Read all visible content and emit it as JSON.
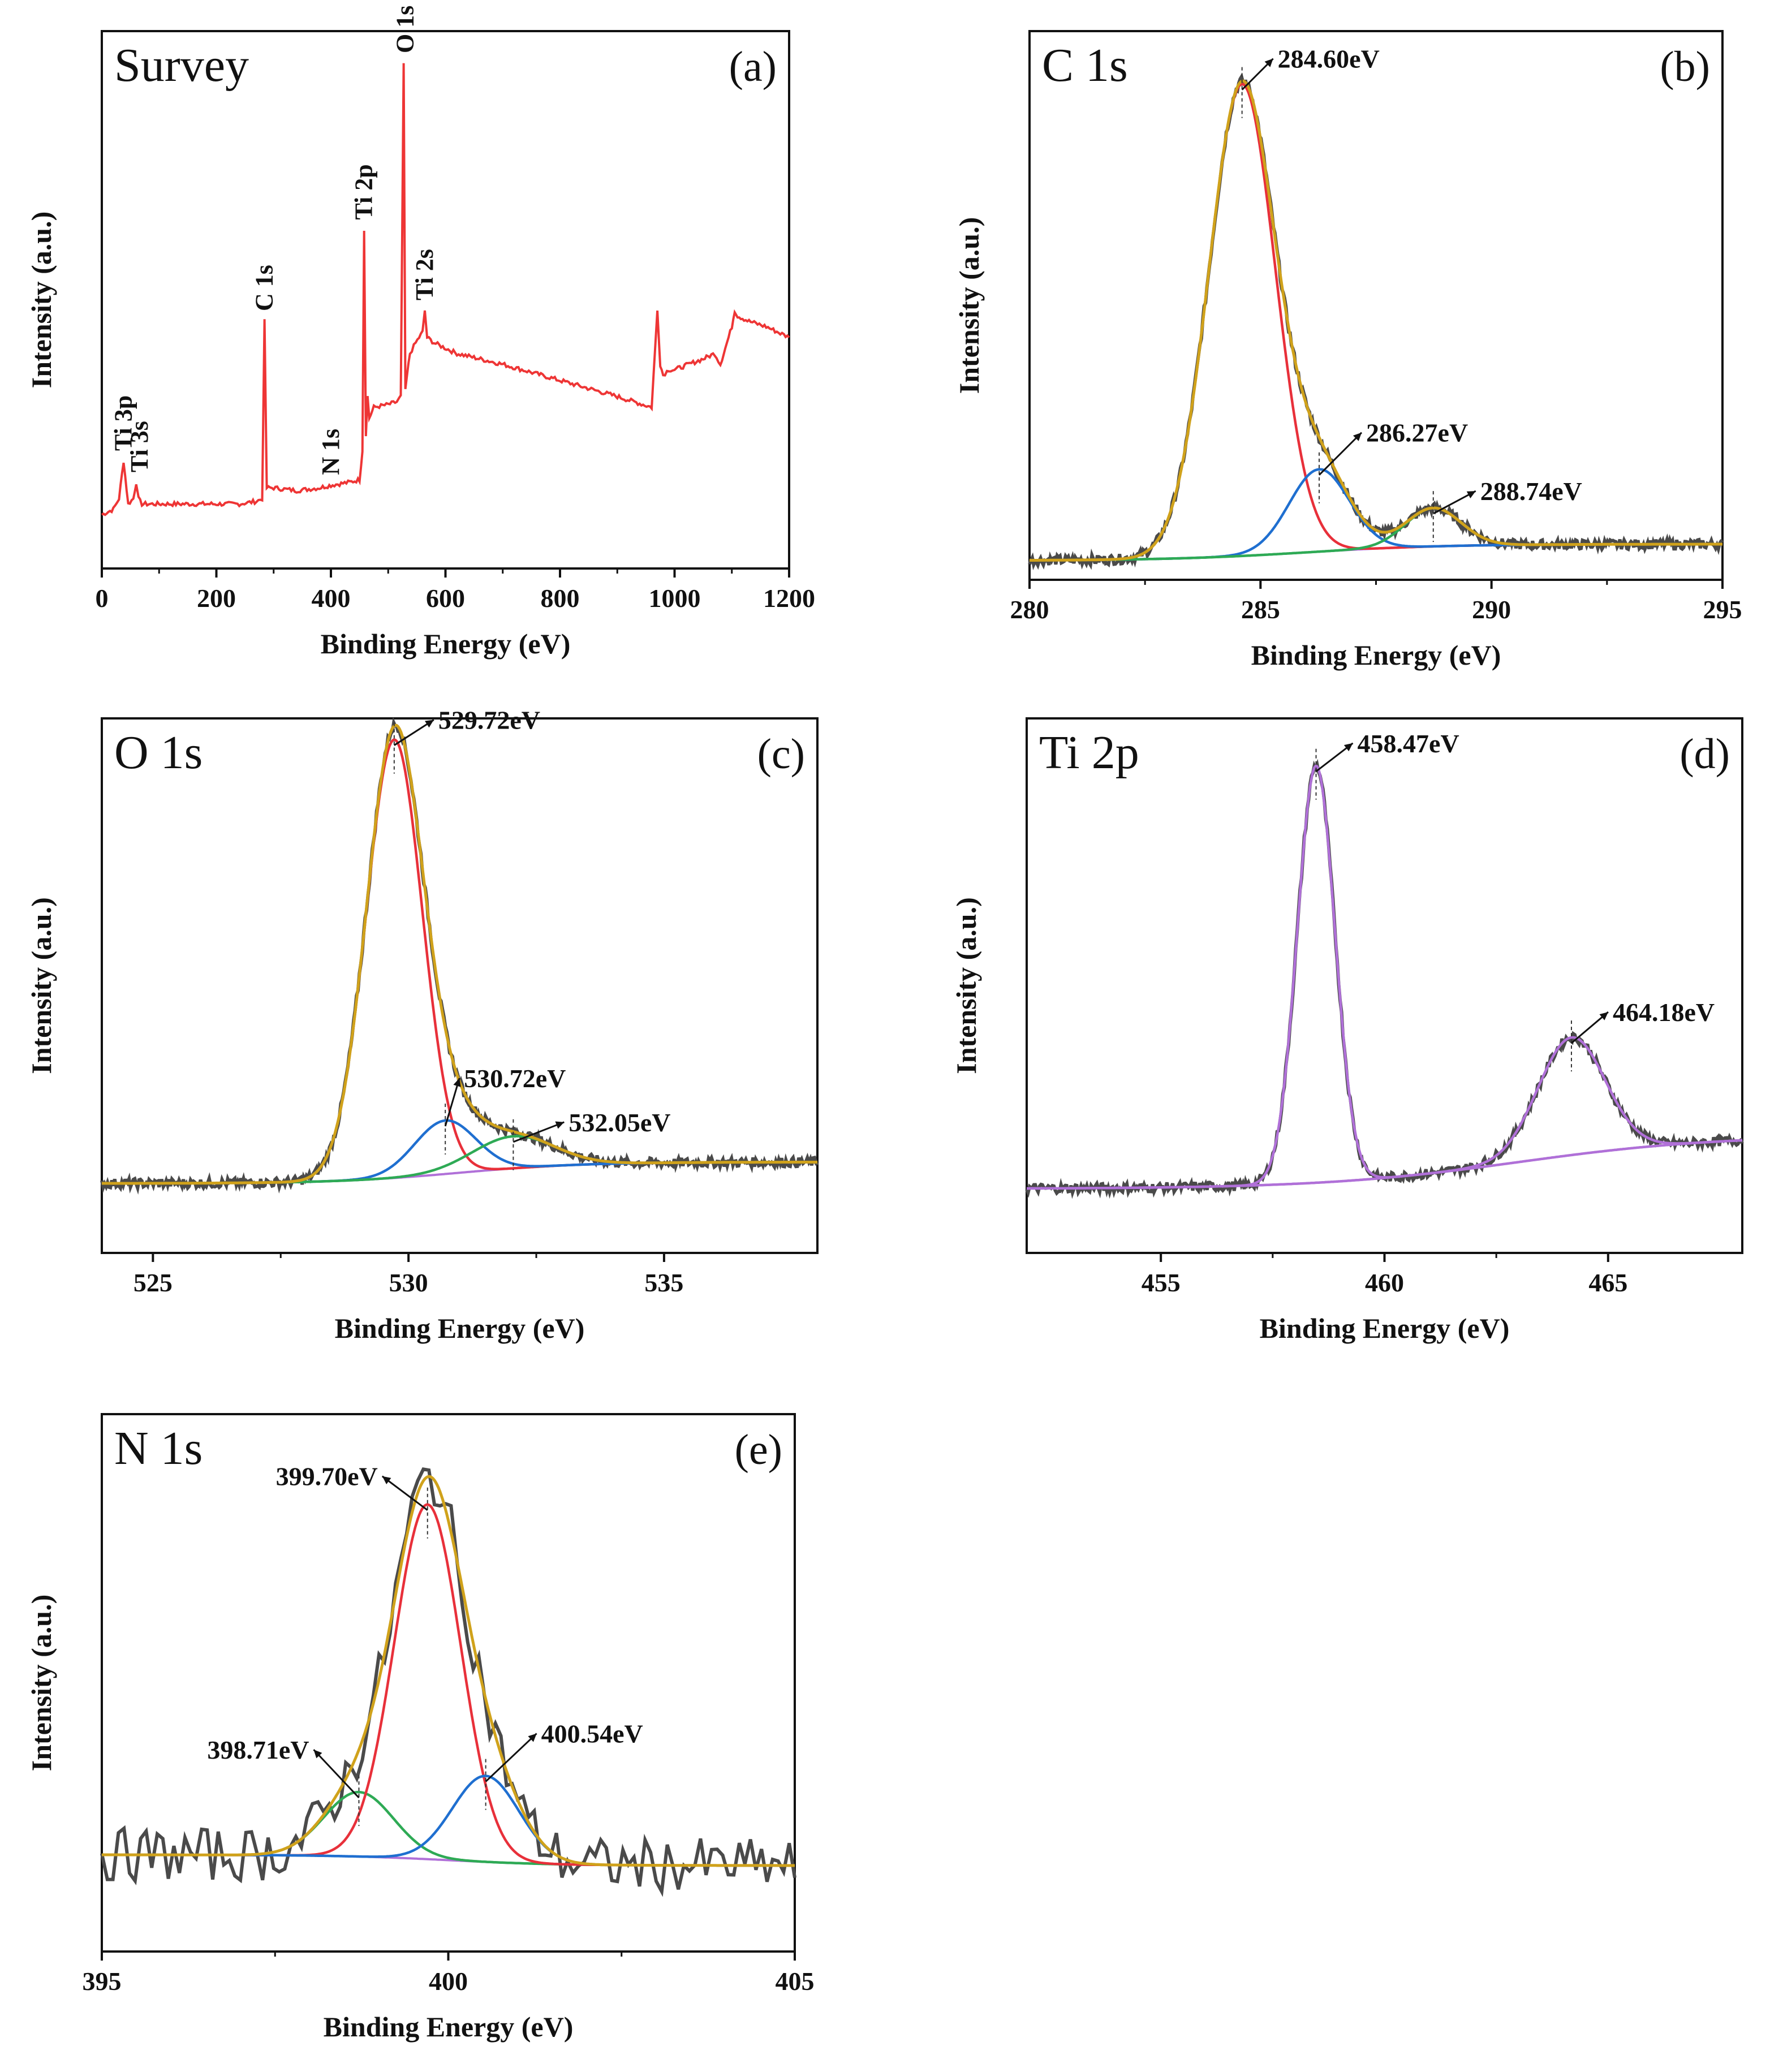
{
  "colors": {
    "raw": "#4a4a4a",
    "envelope": "#d0a21b",
    "red": "#e8303a",
    "blue": "#1f6fd0",
    "green": "#2eaa55",
    "purple": "#b070d8",
    "survey": "#ee3535"
  },
  "chart_data": [
    {
      "id": "a",
      "type": "line",
      "title": "Survey",
      "letter": "(a)",
      "xlabel": "Binding Energy (eV)",
      "ylabel": "Intensity (a.u.)",
      "xlim": [
        0,
        1200
      ],
      "xticks": [
        0,
        200,
        400,
        600,
        800,
        1000,
        1200
      ],
      "ylim": [
        0,
        100
      ],
      "series": [
        {
          "name": "survey",
          "color": "survey",
          "x": [
            0,
            20,
            30,
            38,
            46,
            55,
            60,
            64,
            70,
            100,
            150,
            200,
            240,
            270,
            280,
            284,
            288,
            300,
            340,
            380,
            400,
            430,
            450,
            455,
            458,
            461,
            464,
            467,
            475,
            500,
            515,
            522,
            527,
            530,
            533,
            538,
            548,
            560,
            564,
            568,
            580,
            620,
            700,
            800,
            900,
            960,
            970,
            975,
            980,
            990,
            1000,
            1050,
            1070,
            1080,
            1100,
            1105,
            1110,
            1130,
            1160,
            1200
          ],
          "y": [
            10,
            11,
            13,
            20,
            12,
            13,
            16,
            13,
            12,
            12,
            12,
            12,
            12,
            12.5,
            13,
            46,
            15,
            15,
            14.5,
            15,
            15.5,
            16,
            16.5,
            22,
            63,
            25,
            32,
            28,
            30,
            30.5,
            31,
            32,
            94,
            33,
            36,
            40,
            42,
            44,
            48,
            43,
            42,
            40,
            38,
            35,
            32,
            30,
            48,
            38,
            36,
            37,
            37,
            39,
            40,
            38,
            45,
            48,
            47,
            46,
            45,
            43
          ]
        }
      ],
      "annotations": [
        {
          "text": "Ti 3p",
          "x": 38
        },
        {
          "text": "Ti 3s",
          "x": 64
        },
        {
          "text": "C 1s",
          "x": 284
        },
        {
          "text": "N 1s",
          "x": 400
        },
        {
          "text": "Ti  2p",
          "x": 458
        },
        {
          "text": "Ti 2s",
          "x": 564
        },
        {
          "text": "O 1s",
          "x": 530
        }
      ]
    },
    {
      "id": "b",
      "type": "line",
      "title": "C 1s",
      "letter": "(b)",
      "xlabel": "Binding Energy (eV)",
      "ylabel": "Intensity (a.u.)",
      "xlim": [
        280,
        295
      ],
      "xticks": [
        280,
        285,
        290,
        295
      ],
      "ylim": [
        0,
        100
      ],
      "background": {
        "x0": 280,
        "x1": 295,
        "y0": 3.5,
        "y1": 6.5,
        "center": 286,
        "width": 1.5
      },
      "components": [
        {
          "color": "red",
          "center": 284.6,
          "amp": 86,
          "sigma": 0.72
        },
        {
          "color": "blue",
          "center": 286.27,
          "amp": 15,
          "sigma": 0.65
        },
        {
          "color": "green",
          "center": 288.74,
          "amp": 7,
          "sigma": 0.6
        }
      ],
      "peak_labels": [
        {
          "text": "284.60eV",
          "x": 284.6
        },
        {
          "text": "286.27eV",
          "x": 286.27
        },
        {
          "text": "288.74eV",
          "x": 288.74
        }
      ]
    },
    {
      "id": "c",
      "type": "line",
      "title": "O 1s",
      "letter": "(c)",
      "xlabel": "Binding Energy (eV)",
      "ylabel": "Intensity (a.u.)",
      "xlim": [
        524,
        538
      ],
      "xticks": [
        525,
        530,
        535
      ],
      "ylim": [
        0,
        100
      ],
      "background": {
        "x0": 524,
        "x1": 538,
        "y0": 13,
        "y1": 17,
        "center": 531,
        "width": 1.2
      },
      "components": [
        {
          "color": "red",
          "center": 529.72,
          "amp": 82,
          "sigma": 0.55
        },
        {
          "color": "blue",
          "center": 530.72,
          "amp": 10,
          "sigma": 0.6
        },
        {
          "color": "green",
          "center": 532.05,
          "amp": 6,
          "sigma": 0.8
        }
      ],
      "peak_labels": [
        {
          "text": "529.72eV",
          "x": 529.72
        },
        {
          "text": "530.72eV",
          "x": 530.72
        },
        {
          "text": "532.05eV",
          "x": 532.05
        }
      ]
    },
    {
      "id": "d",
      "type": "line",
      "title": "Ti 2p",
      "letter": "(d)",
      "xlabel": "Binding Energy (eV)",
      "ylabel": "Intensity (a.u.)",
      "xlim": [
        452,
        468
      ],
      "xticks": [
        455,
        460,
        465
      ],
      "ylim": [
        0,
        100
      ],
      "background": {
        "x0": 452,
        "x1": 468,
        "y0": 12,
        "y1": 22,
        "center": 463,
        "width": 2.2
      },
      "components": [
        {
          "color": "purple",
          "center": 458.47,
          "amp": 78,
          "sigma": 0.42
        },
        {
          "color": "purple",
          "center": 464.18,
          "amp": 22,
          "sigma": 0.75
        }
      ],
      "peak_labels": [
        {
          "text": "458.47eV",
          "x": 458.47
        },
        {
          "text": "464.18eV",
          "x": 464.18
        }
      ]
    },
    {
      "id": "e",
      "type": "line",
      "title": "N 1s",
      "letter": "(e)",
      "xlabel": "Binding Energy (eV)",
      "ylabel": "Intensity (a.u.)",
      "xlim": [
        395,
        405
      ],
      "xticks": [
        395,
        400,
        405
      ],
      "ylim": [
        0,
        100
      ],
      "background": {
        "x0": 395,
        "x1": 405,
        "y0": 18,
        "y1": 16,
        "center": 400,
        "width": 0.8
      },
      "components": [
        {
          "color": "green",
          "center": 398.71,
          "amp": 12,
          "sigma": 0.5
        },
        {
          "color": "red",
          "center": 399.7,
          "amp": 66,
          "sigma": 0.48
        },
        {
          "color": "blue",
          "center": 400.54,
          "amp": 16,
          "sigma": 0.48
        }
      ],
      "peak_labels": [
        {
          "text": "399.70eV",
          "x": 399.7
        },
        {
          "text": "398.71eV",
          "x": 398.71
        },
        {
          "text": "400.54eV",
          "x": 400.54
        }
      ]
    }
  ]
}
